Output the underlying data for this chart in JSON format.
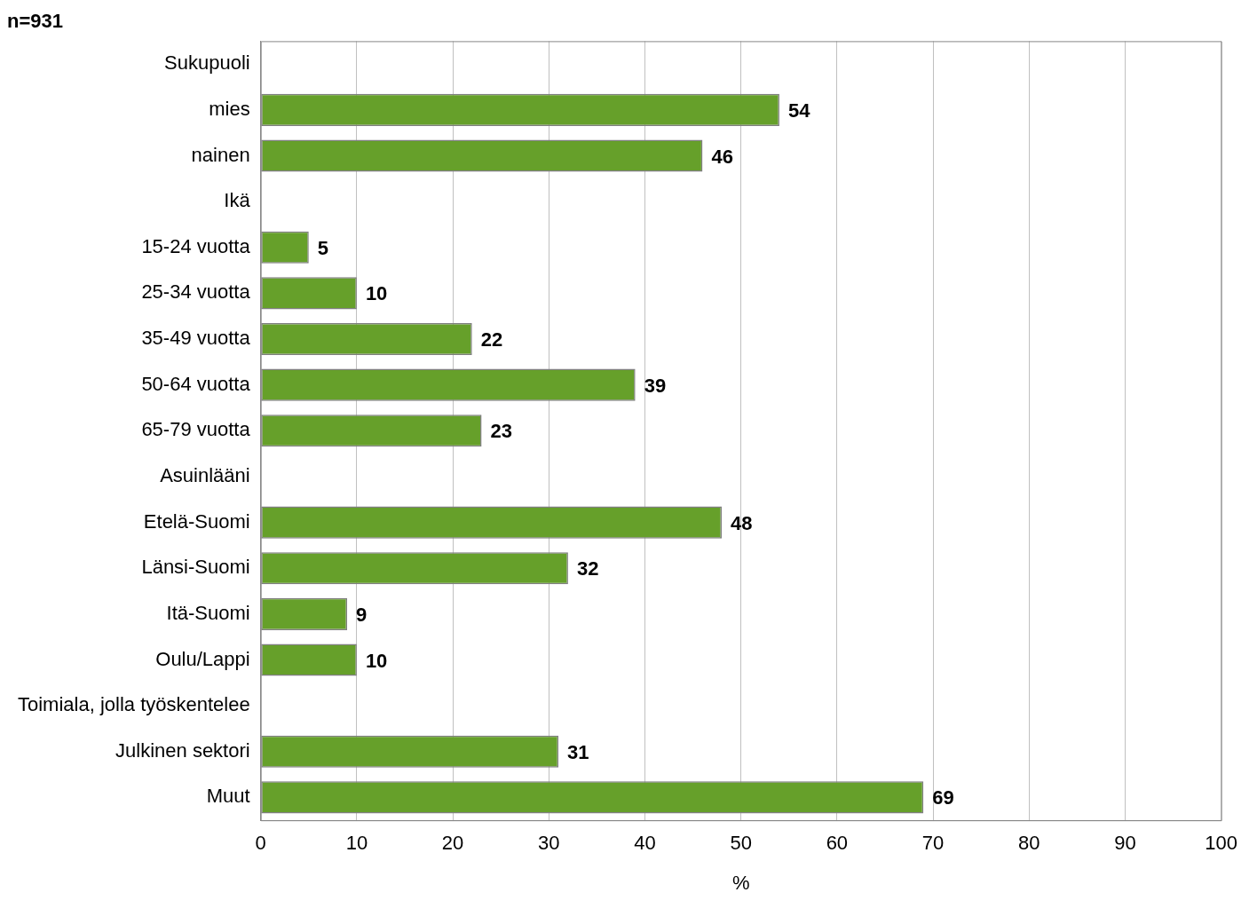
{
  "chart_data": {
    "type": "bar",
    "orientation": "horizontal",
    "title": "n=931",
    "xlabel": "%",
    "categories": [
      "Sukupuoli",
      "mies",
      "nainen",
      "Ikä",
      "15-24 vuotta",
      "25-34 vuotta",
      "35-49 vuotta",
      "50-64 vuotta",
      "65-79 vuotta",
      "Asuinlääni",
      "Etelä-Suomi",
      "Länsi-Suomi",
      "Itä-Suomi",
      "Oulu/Lappi",
      "Toimiala, jolla työskentelee",
      "Julkinen sektori",
      "Muut"
    ],
    "values": [
      null,
      54,
      46,
      null,
      5,
      10,
      22,
      39,
      23,
      null,
      48,
      32,
      9,
      10,
      null,
      31,
      69
    ],
    "color": "#66a02a",
    "xlim": [
      0,
      100
    ],
    "xticks": [
      0,
      10,
      20,
      30,
      40,
      50,
      60,
      70,
      80,
      90,
      100
    ],
    "grid": "x",
    "data_labels": true
  }
}
